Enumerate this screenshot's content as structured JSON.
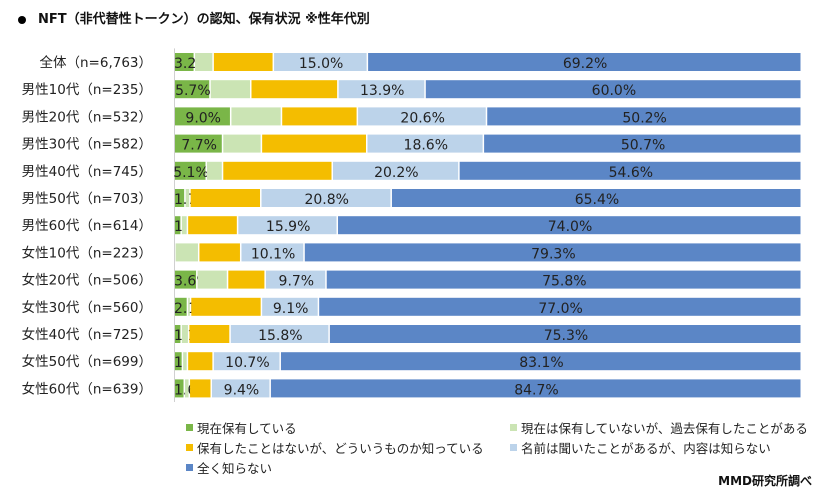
{
  "title": "NFT（非代替性トークン）の認知、保有状況 ※性年代別",
  "source": "MMD研究所調べ",
  "chart_data": {
    "type": "bar",
    "orientation": "horizontal",
    "stacked": true,
    "percent": true,
    "xlim": [
      0,
      100
    ],
    "grid": false,
    "legend_position": "bottom",
    "categories": [
      "全体（n=6,763）",
      "男性10代（n=235）",
      "男性20代（n=532）",
      "男性30代（n=582）",
      "男性40代（n=745）",
      "男性50代（n=703）",
      "男性60代（n=614）",
      "女性10代（n=223）",
      "女性20代（n=506）",
      "女性30代（n=560）",
      "女性40代（n=725）",
      "女性50代（n=699）",
      "女性60代（n=639）"
    ],
    "series": [
      {
        "name": "現在保有している",
        "color": "#7ab648",
        "values": [
          3.2,
          5.7,
          9.0,
          7.7,
          5.1,
          1.7,
          1.1,
          0.1,
          3.6,
          2.1,
          1.1,
          1.3,
          1.6
        ],
        "labels": [
          "3.2%",
          "5.7%",
          "9.0%",
          "7.7%",
          "5.1%",
          "1.7%",
          "1.1%",
          null,
          "3.6%",
          "2.1%",
          "1.1%",
          "1.3%",
          "1.6%"
        ]
      },
      {
        "name": "現在は保有していないが、過去保有したことがある",
        "color": "#cbe4b4",
        "values": [
          3.0,
          6.5,
          8.1,
          6.2,
          2.6,
          0.8,
          1.0,
          3.8,
          4.9,
          0.5,
          1.2,
          0.8,
          0.8
        ],
        "labels": [
          null,
          null,
          null,
          null,
          null,
          null,
          null,
          null,
          null,
          null,
          null,
          null,
          null
        ]
      },
      {
        "name": "保有したことはないが、どういうものか知っている",
        "color": "#f4bd00",
        "values": [
          9.6,
          13.9,
          12.1,
          16.8,
          17.5,
          11.3,
          8.0,
          6.7,
          6.0,
          11.3,
          6.6,
          4.1,
          3.5
        ],
        "labels": [
          null,
          null,
          null,
          null,
          null,
          null,
          null,
          null,
          null,
          null,
          null,
          null,
          null
        ]
      },
      {
        "name": "名前は聞いたことがあるが、内容は知らない",
        "color": "#bcd3ea",
        "values": [
          15.0,
          13.9,
          20.6,
          18.6,
          20.2,
          20.8,
          15.9,
          10.1,
          9.7,
          9.1,
          15.8,
          10.7,
          9.4
        ],
        "labels": [
          "15.0%",
          "13.9%",
          "20.6%",
          "18.6%",
          "20.2%",
          "20.8%",
          "15.9%",
          "10.1%",
          "9.7%",
          "9.1%",
          "15.8%",
          "10.7%",
          "9.4%"
        ]
      },
      {
        "name": "全く知らない",
        "color": "#5b86c6",
        "values": [
          69.2,
          60.0,
          50.2,
          50.7,
          54.6,
          65.4,
          74.0,
          79.3,
          75.8,
          77.0,
          75.3,
          83.1,
          84.7
        ],
        "labels": [
          "69.2%",
          "60.0%",
          "50.2%",
          "50.7%",
          "54.6%",
          "65.4%",
          "74.0%",
          "79.3%",
          "75.8%",
          "77.0%",
          "75.3%",
          "83.1%",
          "84.7%"
        ]
      }
    ]
  }
}
